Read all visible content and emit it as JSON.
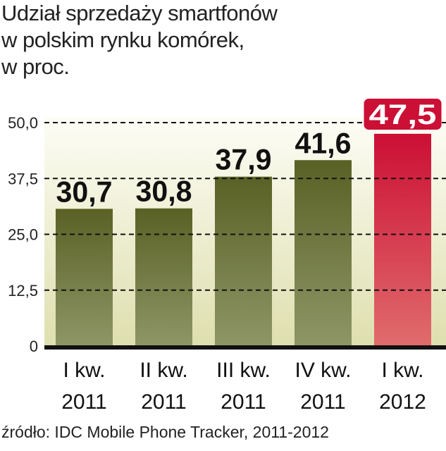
{
  "chart_data": {
    "type": "bar",
    "title": [
      "Udział sprzedaży smartfonów",
      "w polskim rynku komórek,",
      "w proc."
    ],
    "categories": [
      [
        "I kw.",
        "2011"
      ],
      [
        "II kw.",
        "2011"
      ],
      [
        "III kw.",
        "2011"
      ],
      [
        "IV kw.",
        "2011"
      ],
      [
        "I kw.",
        "2012"
      ]
    ],
    "values": [
      30.7,
      30.8,
      37.9,
      41.6,
      47.5
    ],
    "value_labels": [
      "30,7",
      "30,8",
      "37,9",
      "41,6",
      "47,5"
    ],
    "highlighted_index": 4,
    "yticks": [
      0,
      12.5,
      25.0,
      37.5,
      50.0
    ],
    "ytick_labels": [
      "0",
      "12,5",
      "25,0",
      "37,5",
      "50,0"
    ],
    "ylim": [
      0,
      50
    ],
    "grid": "dashed horizontal",
    "xlabel": "",
    "ylabel": "",
    "source": "źródło: IDC Mobile Phone Tracker, 2011-2012",
    "colors": {
      "bar_top": "#5a6125",
      "bar_bottom": "#8e9667",
      "highlight_top": "#cc0f35",
      "highlight_bottom": "#e06c6c",
      "background_top": "#fdfdf6",
      "background_bottom": "#dedfae"
    }
  }
}
